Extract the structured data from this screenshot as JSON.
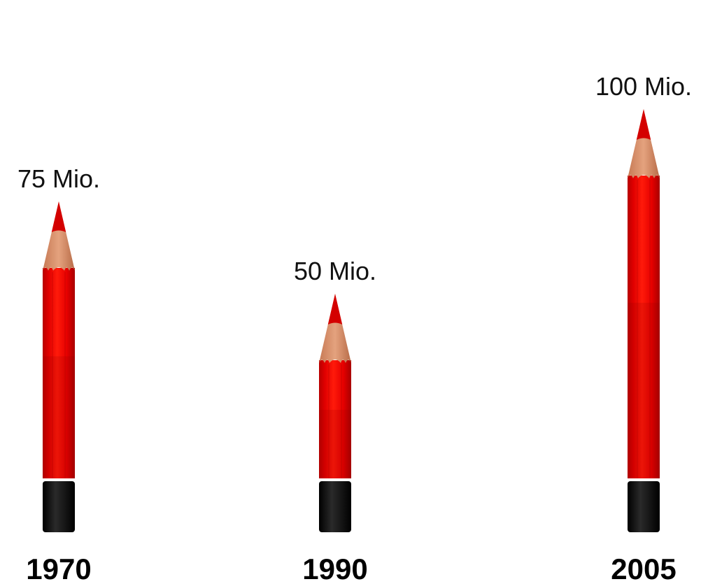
{
  "chart_data": {
    "type": "bar",
    "categories": [
      "1970",
      "1990",
      "2005"
    ],
    "values": [
      75,
      50,
      100
    ],
    "value_labels": [
      "75 Mio.",
      "50 Mio.",
      "100 Mio."
    ],
    "title": "",
    "xlabel": "",
    "ylabel": "",
    "ylim": [
      0,
      100
    ],
    "grid": false,
    "colors": {
      "pencil_body": "#e00000",
      "pencil_body_dark": "#b80000",
      "pencil_highlight": "#ff2a1a",
      "wood_tip": "#d9916a",
      "lead": "#d40000",
      "eraser": "#111111"
    }
  }
}
